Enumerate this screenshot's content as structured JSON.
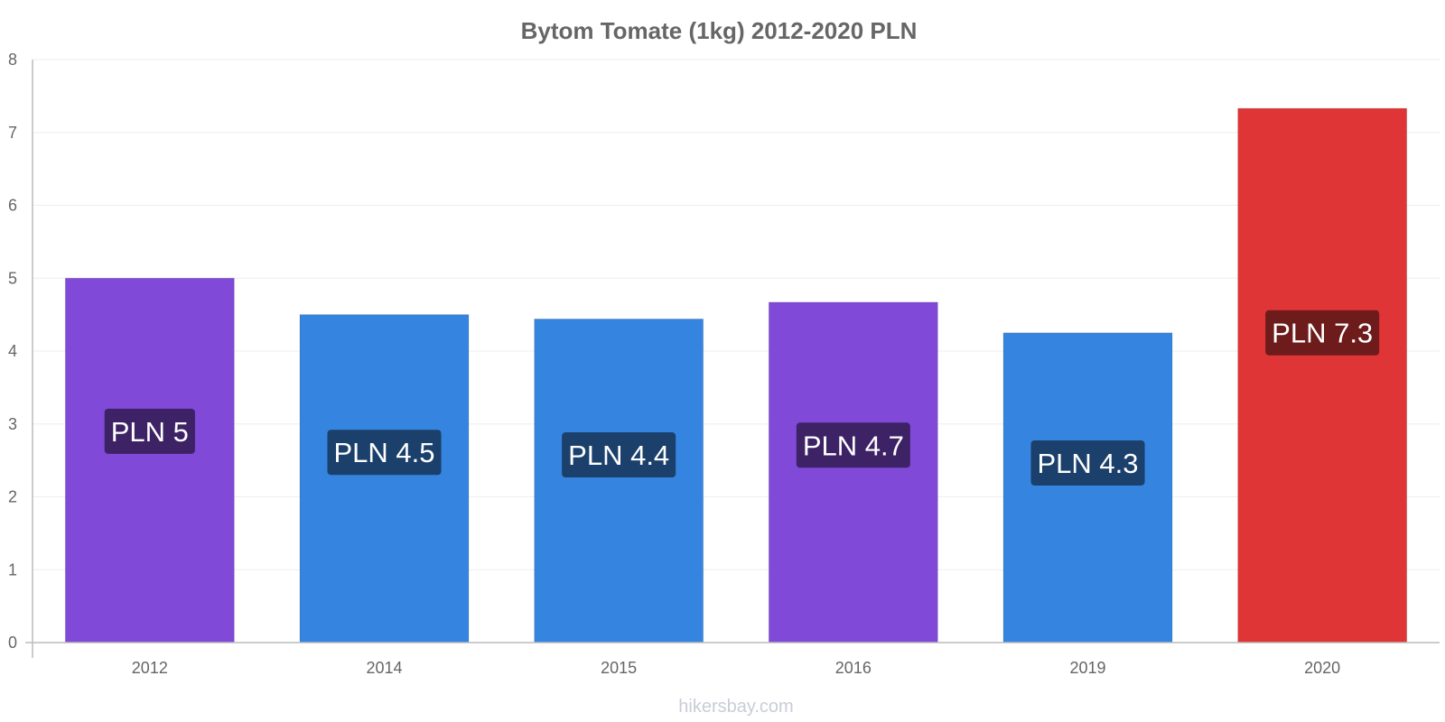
{
  "chart_data": {
    "type": "bar",
    "title": "Bytom Tomate (1kg) 2012-2020 PLN",
    "categories": [
      "2012",
      "2014",
      "2015",
      "2016",
      "2019",
      "2020"
    ],
    "values": [
      5.0,
      4.5,
      4.44,
      4.67,
      4.25,
      7.33
    ],
    "value_labels": [
      "PLN 5",
      "PLN 4.5",
      "PLN 4.4",
      "PLN 4.7",
      "PLN 4.3",
      "PLN 7.3"
    ],
    "bar_colors": [
      "#8049d8",
      "#3584e0",
      "#3584e0",
      "#8049d8",
      "#3584e0",
      "#e03536"
    ],
    "label_bg_colors": [
      "#3d2266",
      "#1b406b",
      "#1b406b",
      "#3d2266",
      "#1b406b",
      "#6d1b1b"
    ],
    "ylim": [
      0,
      8
    ],
    "yticks": [
      "0",
      "1",
      "2",
      "3",
      "4",
      "5",
      "6",
      "7",
      "8"
    ],
    "grid": true,
    "xlabel": "",
    "ylabel": ""
  },
  "footer": {
    "credit": "hikersbay.com"
  }
}
